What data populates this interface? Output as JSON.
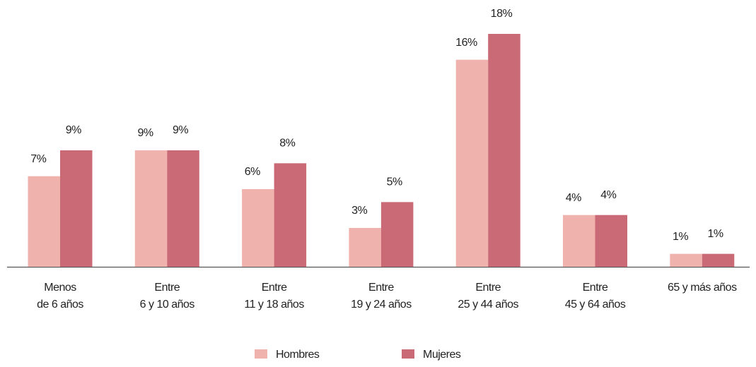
{
  "chart_data": {
    "type": "bar",
    "categories": [
      [
        "Menos",
        "de 6 años"
      ],
      [
        "Entre",
        "6 y 10 años"
      ],
      [
        "Entre",
        "11 y 18 años"
      ],
      [
        "Entre",
        "19 y 24 años"
      ],
      [
        "Entre",
        "25 y 44 años"
      ],
      [
        "Entre",
        "45 y 64 años"
      ],
      [
        "65 y más años"
      ]
    ],
    "series": [
      {
        "name": "Hombres",
        "color": "#f0b2ad",
        "values": [
          7,
          9,
          6,
          3,
          16,
          4,
          1
        ],
        "value_labels": [
          "7%",
          "9%",
          "6%",
          "3%",
          "16%",
          "4%",
          "1%"
        ]
      },
      {
        "name": "Mujeres",
        "color": "#c96a76",
        "values": [
          9,
          9,
          8,
          5,
          18,
          4,
          1
        ],
        "value_labels": [
          "9%",
          "9%",
          "8%",
          "5%",
          "18%",
          "4%",
          "1%"
        ]
      }
    ],
    "ylim": [
      0,
      18
    ],
    "legend": "bottom"
  }
}
